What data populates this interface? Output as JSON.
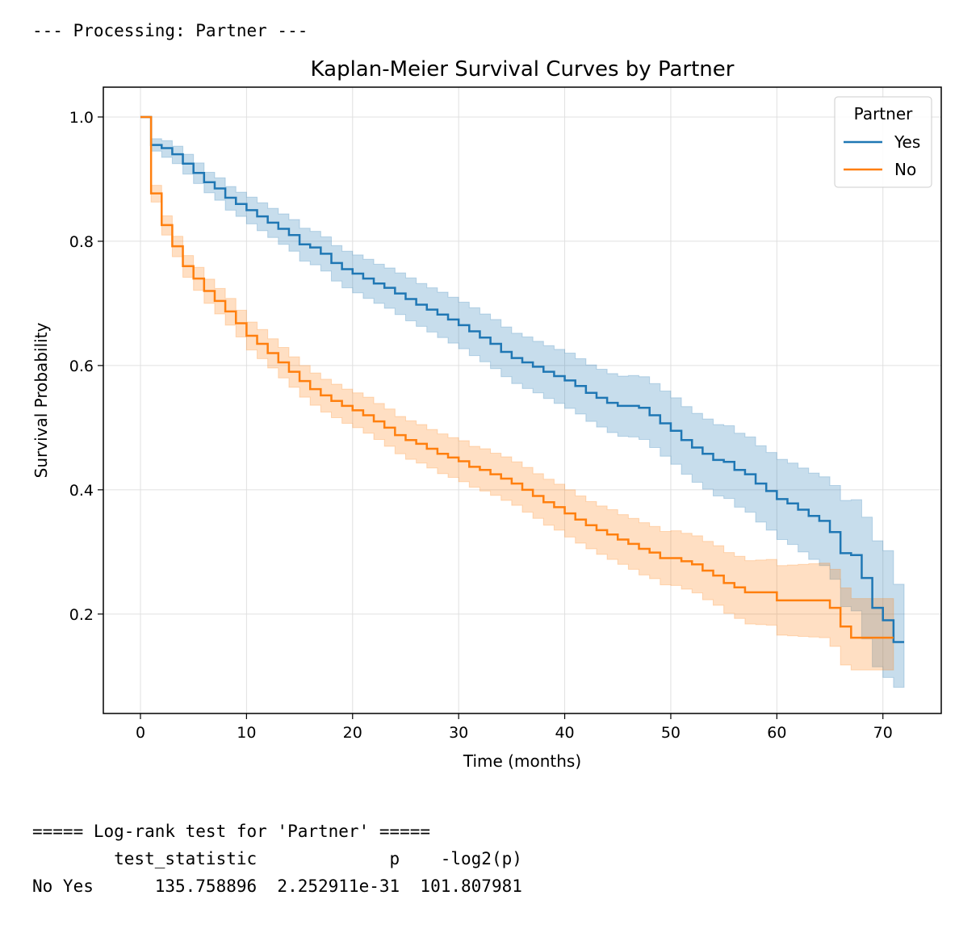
{
  "output": {
    "processing_line": "--- Processing: Partner ---",
    "logrank_title": "===== Log-rank test for 'Partner' =====",
    "logrank_header": "        test_statistic             p    -log2(p)",
    "logrank_row": "No Yes      135.758896  2.252911e-31  101.807981"
  },
  "chart_data": {
    "type": "line",
    "title": "Kaplan-Meier Survival Curves by Partner",
    "xlabel": "Time (months)",
    "ylabel": "Survival Probability",
    "xlim": [
      -3.5,
      75.5
    ],
    "ylim": [
      0.04,
      1.048
    ],
    "xticks": [
      0,
      10,
      20,
      30,
      40,
      50,
      60,
      70
    ],
    "yticks": [
      0.2,
      0.4,
      0.6,
      0.8,
      1.0
    ],
    "xtick_labels": [
      "0",
      "10",
      "20",
      "30",
      "40",
      "50",
      "60",
      "70"
    ],
    "ytick_labels": [
      "0.2",
      "0.4",
      "0.6",
      "0.8",
      "1.0"
    ],
    "grid": true,
    "legend_title": "Partner",
    "legend_position": "top-right",
    "colors": {
      "Yes": "#1f77b4",
      "No": "#ff7f0e"
    },
    "series": [
      {
        "name": "Yes",
        "color": "#1f77b4",
        "x": [
          0,
          1,
          2,
          3,
          4,
          5,
          6,
          7,
          8,
          9,
          10,
          11,
          12,
          13,
          14,
          15,
          16,
          17,
          18,
          19,
          20,
          21,
          22,
          23,
          24,
          25,
          26,
          27,
          28,
          29,
          30,
          31,
          32,
          33,
          34,
          35,
          36,
          37,
          38,
          39,
          40,
          41,
          42,
          43,
          44,
          45,
          46,
          47,
          48,
          49,
          50,
          51,
          52,
          53,
          54,
          55,
          56,
          57,
          58,
          59,
          60,
          61,
          62,
          63,
          64,
          65,
          66,
          67,
          68,
          69,
          70,
          71,
          72
        ],
        "y": [
          1.0,
          0.955,
          0.95,
          0.94,
          0.925,
          0.91,
          0.895,
          0.885,
          0.87,
          0.86,
          0.85,
          0.84,
          0.83,
          0.82,
          0.81,
          0.795,
          0.79,
          0.78,
          0.765,
          0.755,
          0.748,
          0.74,
          0.732,
          0.725,
          0.716,
          0.707,
          0.698,
          0.69,
          0.682,
          0.674,
          0.665,
          0.655,
          0.645,
          0.635,
          0.622,
          0.612,
          0.605,
          0.598,
          0.59,
          0.583,
          0.576,
          0.567,
          0.556,
          0.548,
          0.54,
          0.535,
          0.535,
          0.532,
          0.52,
          0.507,
          0.495,
          0.48,
          0.468,
          0.458,
          0.448,
          0.445,
          0.432,
          0.425,
          0.41,
          0.398,
          0.385,
          0.378,
          0.368,
          0.358,
          0.35,
          0.332,
          0.298,
          0.295,
          0.258,
          0.21,
          0.19,
          0.155,
          0.155
        ],
        "ci_lower": [
          1.0,
          0.945,
          0.935,
          0.925,
          0.908,
          0.893,
          0.878,
          0.866,
          0.85,
          0.84,
          0.828,
          0.817,
          0.806,
          0.795,
          0.784,
          0.768,
          0.762,
          0.752,
          0.736,
          0.725,
          0.717,
          0.708,
          0.7,
          0.692,
          0.682,
          0.672,
          0.663,
          0.654,
          0.645,
          0.636,
          0.627,
          0.616,
          0.606,
          0.595,
          0.582,
          0.571,
          0.563,
          0.556,
          0.547,
          0.539,
          0.531,
          0.522,
          0.51,
          0.501,
          0.492,
          0.486,
          0.485,
          0.481,
          0.468,
          0.454,
          0.441,
          0.425,
          0.412,
          0.401,
          0.39,
          0.386,
          0.372,
          0.364,
          0.348,
          0.335,
          0.32,
          0.312,
          0.3,
          0.288,
          0.278,
          0.256,
          0.212,
          0.205,
          0.16,
          0.115,
          0.098,
          0.082,
          0.082
        ],
        "ci_upper": [
          1.0,
          0.965,
          0.962,
          0.953,
          0.94,
          0.926,
          0.911,
          0.902,
          0.888,
          0.879,
          0.871,
          0.862,
          0.853,
          0.844,
          0.835,
          0.821,
          0.816,
          0.807,
          0.793,
          0.784,
          0.778,
          0.771,
          0.763,
          0.757,
          0.749,
          0.741,
          0.732,
          0.725,
          0.718,
          0.71,
          0.702,
          0.693,
          0.683,
          0.674,
          0.662,
          0.652,
          0.646,
          0.639,
          0.632,
          0.626,
          0.62,
          0.611,
          0.601,
          0.594,
          0.587,
          0.583,
          0.584,
          0.582,
          0.571,
          0.559,
          0.548,
          0.534,
          0.523,
          0.514,
          0.505,
          0.503,
          0.491,
          0.485,
          0.471,
          0.46,
          0.449,
          0.443,
          0.435,
          0.427,
          0.421,
          0.407,
          0.383,
          0.384,
          0.356,
          0.318,
          0.302,
          0.248,
          0.248
        ]
      },
      {
        "name": "No",
        "color": "#ff7f0e",
        "x": [
          0,
          1,
          2,
          3,
          4,
          5,
          6,
          7,
          8,
          9,
          10,
          11,
          12,
          13,
          14,
          15,
          16,
          17,
          18,
          19,
          20,
          21,
          22,
          23,
          24,
          25,
          26,
          27,
          28,
          29,
          30,
          31,
          32,
          33,
          34,
          35,
          36,
          37,
          38,
          39,
          40,
          41,
          42,
          43,
          44,
          45,
          46,
          47,
          48,
          49,
          50,
          51,
          52,
          53,
          54,
          55,
          56,
          57,
          58,
          59,
          60,
          61,
          62,
          63,
          64,
          65,
          66,
          67,
          68,
          69,
          70,
          71
        ],
        "y": [
          1.0,
          0.877,
          0.826,
          0.792,
          0.76,
          0.74,
          0.72,
          0.704,
          0.687,
          0.668,
          0.648,
          0.635,
          0.62,
          0.605,
          0.59,
          0.575,
          0.562,
          0.552,
          0.543,
          0.535,
          0.528,
          0.52,
          0.51,
          0.5,
          0.488,
          0.48,
          0.474,
          0.466,
          0.458,
          0.452,
          0.446,
          0.437,
          0.432,
          0.425,
          0.418,
          0.41,
          0.4,
          0.39,
          0.38,
          0.372,
          0.362,
          0.352,
          0.343,
          0.335,
          0.328,
          0.32,
          0.313,
          0.305,
          0.299,
          0.29,
          0.29,
          0.285,
          0.28,
          0.27,
          0.262,
          0.25,
          0.243,
          0.235,
          0.235,
          0.235,
          0.222,
          0.222,
          0.222,
          0.222,
          0.222,
          0.21,
          0.18,
          0.162,
          0.162,
          0.162,
          0.162,
          0.162
        ],
        "ci_lower": [
          1.0,
          0.863,
          0.81,
          0.775,
          0.742,
          0.721,
          0.7,
          0.683,
          0.665,
          0.646,
          0.625,
          0.611,
          0.596,
          0.58,
          0.565,
          0.549,
          0.536,
          0.525,
          0.516,
          0.507,
          0.5,
          0.491,
          0.481,
          0.47,
          0.458,
          0.449,
          0.443,
          0.435,
          0.426,
          0.42,
          0.413,
          0.404,
          0.398,
          0.391,
          0.383,
          0.375,
          0.364,
          0.354,
          0.343,
          0.335,
          0.324,
          0.314,
          0.305,
          0.296,
          0.288,
          0.28,
          0.272,
          0.263,
          0.257,
          0.247,
          0.246,
          0.24,
          0.234,
          0.223,
          0.214,
          0.201,
          0.193,
          0.184,
          0.183,
          0.182,
          0.166,
          0.165,
          0.164,
          0.163,
          0.162,
          0.148,
          0.118,
          0.11,
          0.11,
          0.11,
          0.11,
          0.11
        ],
        "ci_upper": [
          1.0,
          0.89,
          0.841,
          0.808,
          0.777,
          0.758,
          0.739,
          0.724,
          0.708,
          0.689,
          0.67,
          0.658,
          0.643,
          0.629,
          0.614,
          0.6,
          0.588,
          0.578,
          0.57,
          0.562,
          0.556,
          0.549,
          0.539,
          0.53,
          0.518,
          0.511,
          0.505,
          0.497,
          0.49,
          0.484,
          0.479,
          0.47,
          0.466,
          0.459,
          0.453,
          0.445,
          0.436,
          0.426,
          0.417,
          0.409,
          0.4,
          0.39,
          0.381,
          0.374,
          0.368,
          0.36,
          0.354,
          0.347,
          0.341,
          0.333,
          0.334,
          0.33,
          0.326,
          0.317,
          0.31,
          0.299,
          0.293,
          0.286,
          0.287,
          0.288,
          0.278,
          0.279,
          0.28,
          0.281,
          0.282,
          0.272,
          0.242,
          0.225,
          0.225,
          0.225,
          0.225,
          0.225
        ]
      }
    ]
  }
}
